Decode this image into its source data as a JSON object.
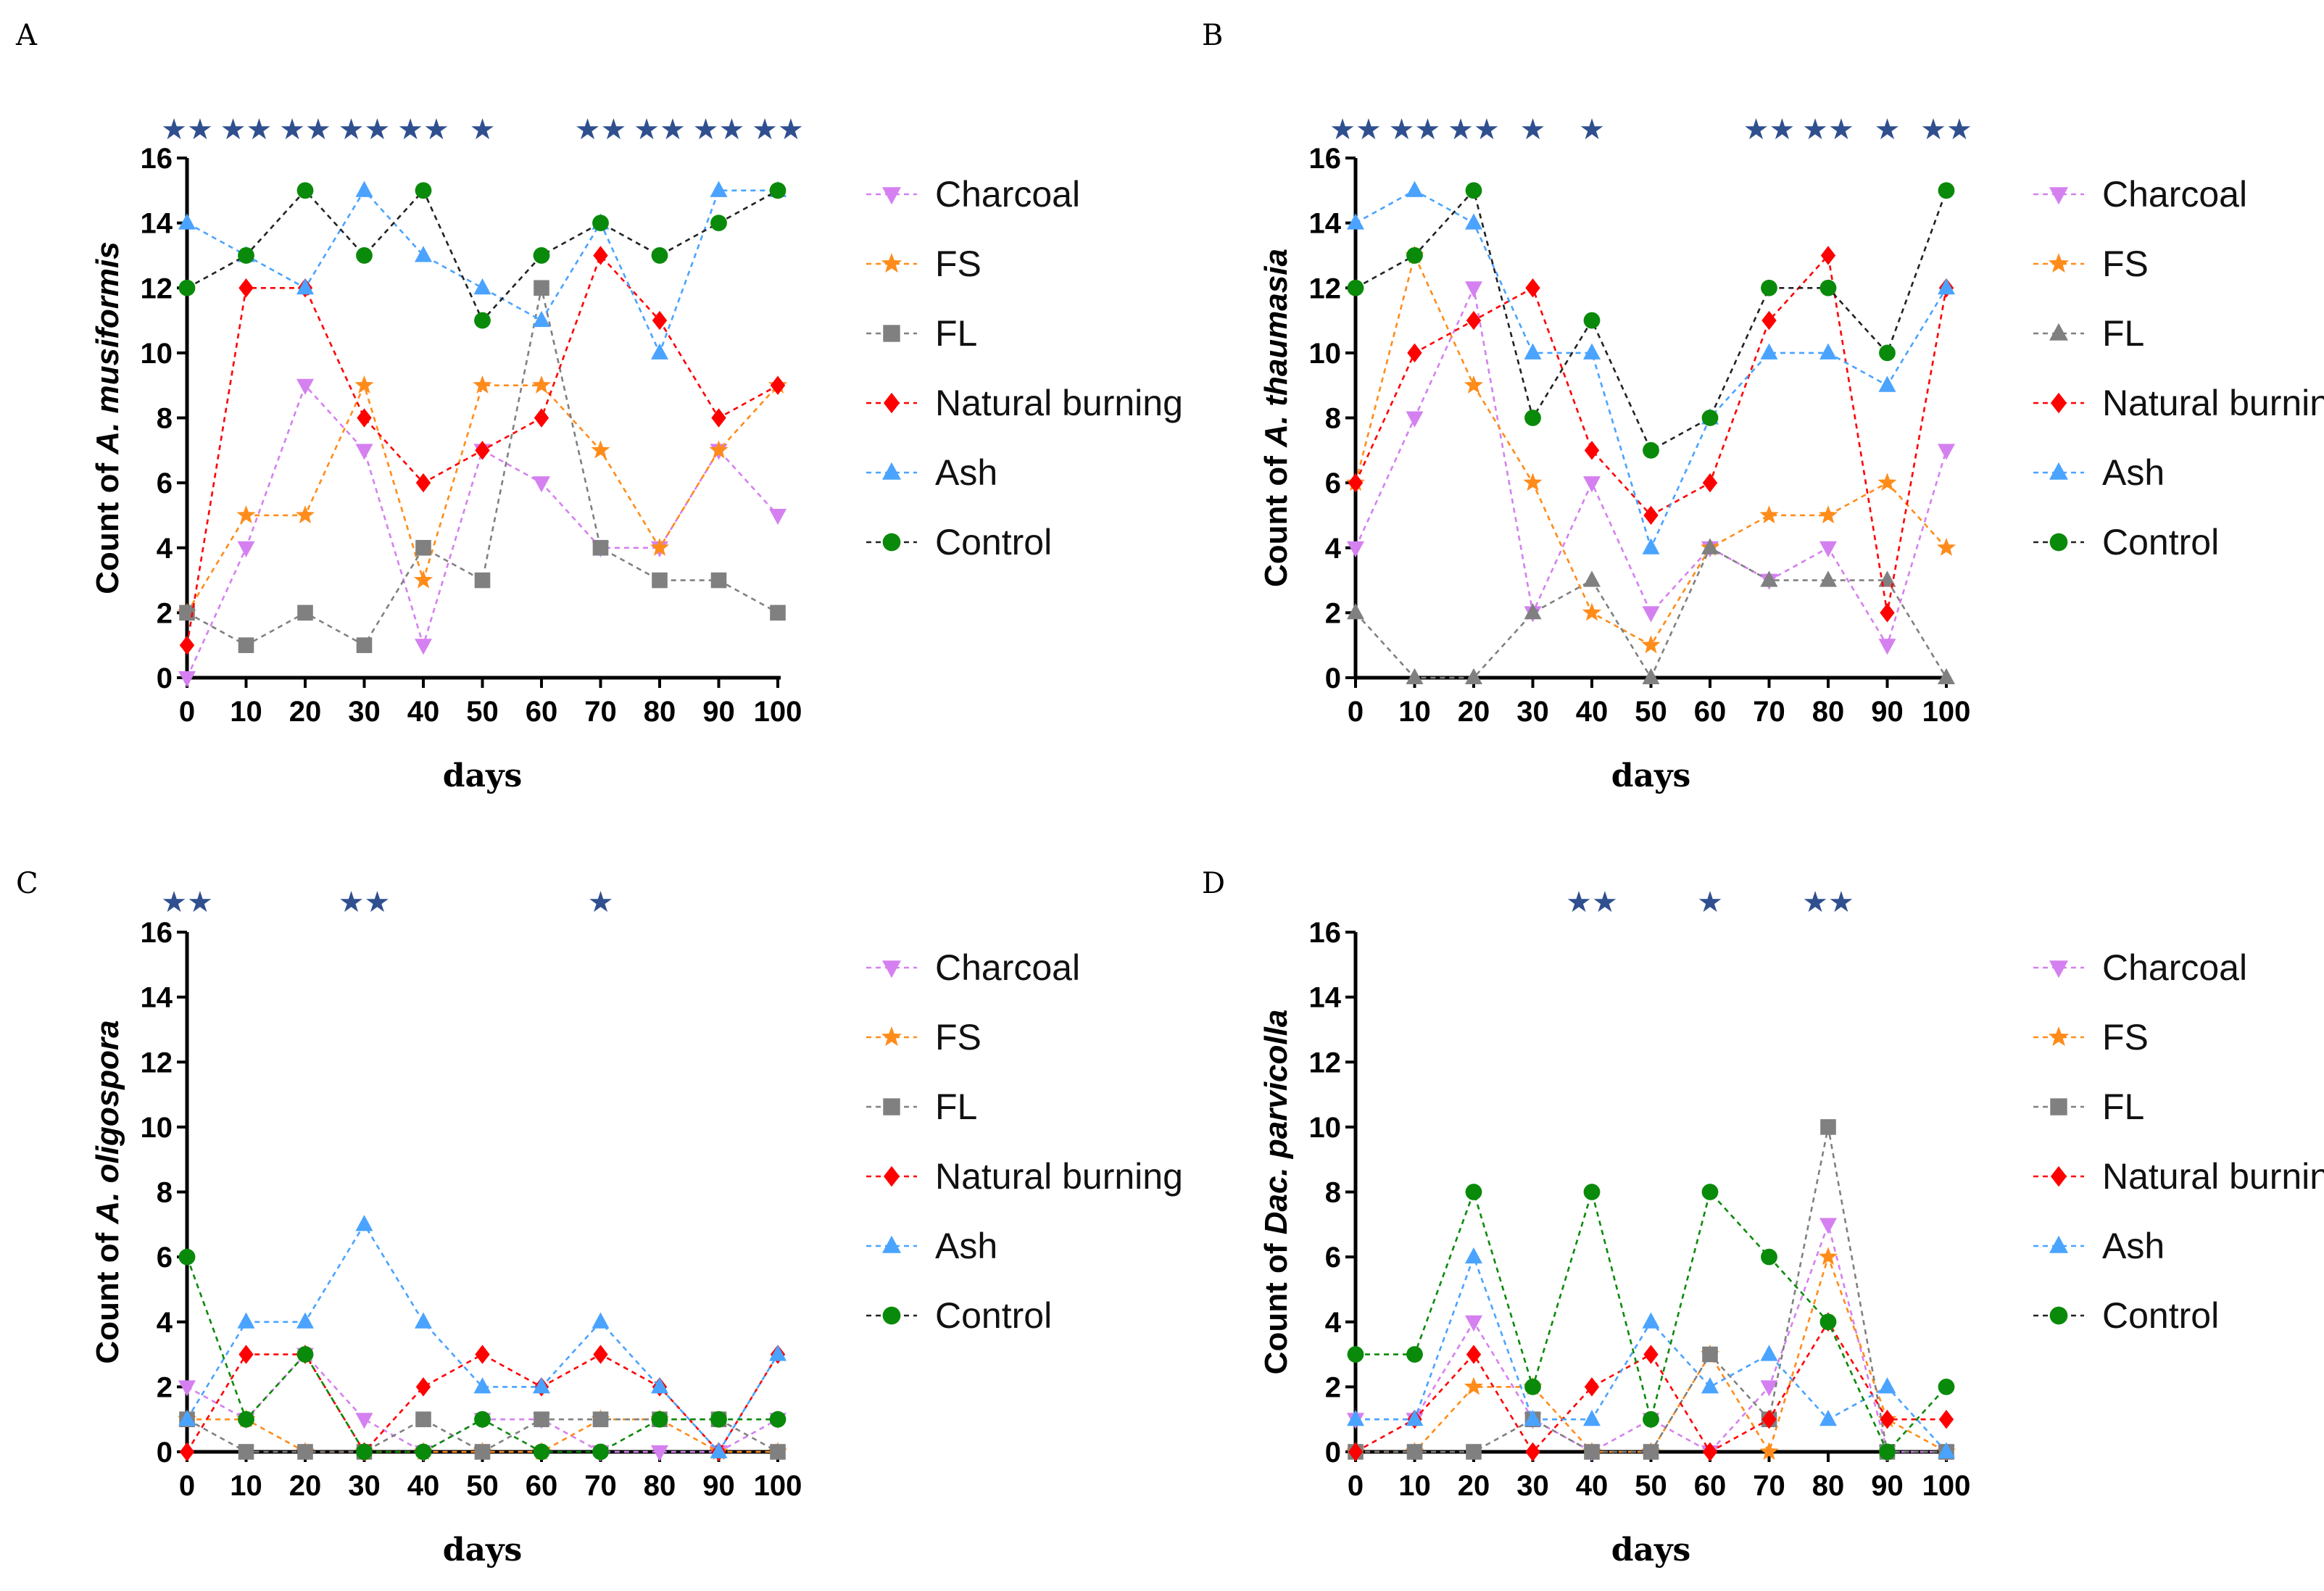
{
  "colors": {
    "Charcoal": "#d580f0",
    "FS": "#ff8c1a",
    "FL": "#808080",
    "Natural burning": "#ff0000",
    "Ash": "#4aa3ff",
    "Control": "#0a8a0a",
    "star": "#2f4f8f"
  },
  "markers": {
    "Charcoal": "triangle-down",
    "FS": "star",
    "FL": "square",
    "Natural burning": "diamond",
    "Ash": "triangle-up",
    "Control": "circle"
  },
  "chart_data": [
    {
      "panel": "A",
      "type": "line",
      "ylabel_prefix": "Count of ",
      "ylabel_species": "A. musiformis",
      "xlabel": "days",
      "x": [
        0,
        10,
        20,
        30,
        40,
        50,
        60,
        70,
        80,
        90,
        100
      ],
      "ylim": [
        0,
        16
      ],
      "yticks": [
        0,
        2,
        4,
        6,
        8,
        10,
        12,
        14,
        16
      ],
      "significance": [
        "★★",
        "★★",
        "★★",
        "★★",
        "★★",
        "★",
        "",
        "★★",
        "★★",
        "★★",
        "★★"
      ],
      "fl_marker": "square",
      "series": [
        {
          "name": "Charcoal",
          "values": [
            0,
            4,
            9,
            7,
            1,
            7,
            6,
            4,
            4,
            7,
            5
          ]
        },
        {
          "name": "FS",
          "values": [
            2,
            5,
            5,
            9,
            3,
            9,
            9,
            7,
            4,
            7,
            9
          ]
        },
        {
          "name": "FL",
          "values": [
            2,
            1,
            2,
            1,
            4,
            3,
            12,
            4,
            3,
            3,
            2
          ]
        },
        {
          "name": "Natural burning",
          "values": [
            1,
            12,
            12,
            8,
            6,
            7,
            8,
            13,
            11,
            8,
            9
          ]
        },
        {
          "name": "Ash",
          "values": [
            14,
            13,
            12,
            15,
            13,
            12,
            11,
            14,
            10,
            15,
            15
          ]
        },
        {
          "name": "Control",
          "values": [
            12,
            13,
            15,
            13,
            15,
            11,
            13,
            14,
            13,
            14,
            15
          ]
        }
      ],
      "legend": [
        "Charcoal",
        "FS",
        "FL",
        "Natural burning",
        "Ash",
        "Control"
      ]
    },
    {
      "panel": "B",
      "type": "line",
      "ylabel_prefix": "Count of ",
      "ylabel_species": "A. thaumasia",
      "xlabel": "days",
      "x": [
        0,
        10,
        20,
        30,
        40,
        50,
        60,
        70,
        80,
        90,
        100
      ],
      "ylim": [
        0,
        16
      ],
      "yticks": [
        0,
        2,
        4,
        6,
        8,
        10,
        12,
        14,
        16
      ],
      "significance": [
        "★★",
        "★★",
        "★★",
        "★",
        "★",
        "",
        "",
        "★★",
        "★★",
        "★",
        "★★"
      ],
      "fl_marker": "triangle-up",
      "series": [
        {
          "name": "Charcoal",
          "values": [
            4,
            8,
            12,
            2,
            6,
            2,
            4,
            3,
            4,
            1,
            7
          ]
        },
        {
          "name": "FS",
          "values": [
            6,
            13,
            9,
            6,
            2,
            1,
            4,
            5,
            5,
            6,
            4
          ]
        },
        {
          "name": "FL",
          "values": [
            2,
            0,
            0,
            2,
            3,
            0,
            4,
            3,
            3,
            3,
            0
          ]
        },
        {
          "name": "Natural burning",
          "values": [
            6,
            10,
            11,
            12,
            7,
            5,
            6,
            11,
            13,
            2,
            12
          ]
        },
        {
          "name": "Ash",
          "values": [
            14,
            15,
            14,
            10,
            10,
            4,
            8,
            10,
            10,
            9,
            12
          ]
        },
        {
          "name": "Control",
          "values": [
            12,
            13,
            15,
            8,
            11,
            7,
            8,
            12,
            12,
            10,
            15
          ]
        }
      ],
      "legend": [
        "Charcoal",
        "FS",
        "FL",
        "Natural burning",
        "Ash",
        "Control"
      ]
    },
    {
      "panel": "C",
      "type": "line",
      "ylabel_prefix": "Count of ",
      "ylabel_species": "A. oligospora",
      "xlabel": "days",
      "x": [
        0,
        10,
        20,
        30,
        40,
        50,
        60,
        70,
        80,
        90,
        100
      ],
      "ylim": [
        0,
        16
      ],
      "yticks": [
        0,
        2,
        4,
        6,
        8,
        10,
        12,
        14,
        16
      ],
      "significance": [
        "★★",
        "",
        "",
        "★★",
        "",
        "",
        "",
        "★",
        "",
        "",
        ""
      ],
      "fl_marker": "square",
      "series": [
        {
          "name": "Charcoal",
          "values": [
            2,
            1,
            3,
            1,
            0,
            1,
            1,
            0,
            0,
            0,
            1
          ]
        },
        {
          "name": "FS",
          "values": [
            1,
            1,
            0,
            0,
            0,
            0,
            0,
            1,
            1,
            0,
            0
          ]
        },
        {
          "name": "FL",
          "values": [
            1,
            0,
            0,
            0,
            1,
            0,
            1,
            1,
            1,
            1,
            0
          ]
        },
        {
          "name": "Natural burning",
          "values": [
            0,
            3,
            3,
            0,
            2,
            3,
            2,
            3,
            2,
            0,
            3
          ]
        },
        {
          "name": "Ash",
          "values": [
            1,
            4,
            4,
            7,
            4,
            2,
            2,
            4,
            2,
            0,
            3
          ]
        },
        {
          "name": "Control",
          "values": [
            6,
            1,
            3,
            0,
            0,
            1,
            0,
            0,
            1,
            1,
            1
          ]
        }
      ],
      "legend": [
        "Charcoal",
        "FS",
        "FL",
        "Natural burning",
        "Ash",
        "Control"
      ]
    },
    {
      "panel": "D",
      "type": "line",
      "ylabel_prefix": "Count of ",
      "ylabel_species": "Dac. parvicolla",
      "xlabel": "days",
      "x": [
        0,
        10,
        20,
        30,
        40,
        50,
        60,
        70,
        80,
        90,
        100
      ],
      "ylim": [
        0,
        16
      ],
      "yticks": [
        0,
        2,
        4,
        6,
        8,
        10,
        12,
        14,
        16
      ],
      "significance": [
        "",
        "",
        "",
        "",
        "★★",
        "",
        "★",
        "",
        "★★",
        "",
        ""
      ],
      "fl_marker": "square",
      "series": [
        {
          "name": "Charcoal",
          "values": [
            1,
            1,
            4,
            1,
            0,
            1,
            0,
            2,
            7,
            0,
            0
          ]
        },
        {
          "name": "FS",
          "values": [
            0,
            0,
            2,
            2,
            0,
            0,
            3,
            0,
            6,
            1,
            0
          ]
        },
        {
          "name": "FL",
          "values": [
            0,
            0,
            0,
            1,
            0,
            0,
            3,
            1,
            10,
            0,
            0
          ]
        },
        {
          "name": "Natural burning",
          "values": [
            0,
            1,
            3,
            0,
            2,
            3,
            0,
            1,
            4,
            1,
            1
          ]
        },
        {
          "name": "Ash",
          "values": [
            1,
            1,
            6,
            1,
            1,
            4,
            2,
            3,
            1,
            2,
            0
          ]
        },
        {
          "name": "Control",
          "values": [
            3,
            3,
            8,
            2,
            8,
            1,
            8,
            6,
            4,
            0,
            2
          ]
        }
      ],
      "legend": [
        "Charcoal",
        "FS",
        "FL",
        "Natural burning",
        "Ash",
        "Control"
      ]
    }
  ]
}
